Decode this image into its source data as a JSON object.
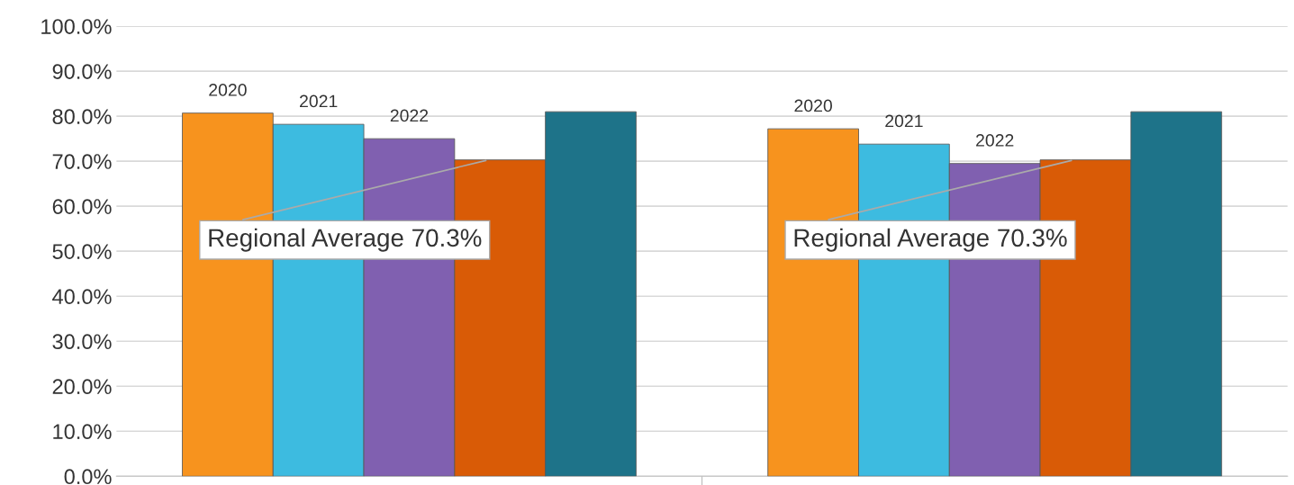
{
  "chart_data": {
    "type": "bar",
    "categories": [
      null,
      null
    ],
    "series": [
      {
        "name": "2020",
        "color": "#f7931e",
        "values": [
          80.7,
          77.2
        ]
      },
      {
        "name": "2021",
        "color": "#3dbbe0",
        "values": [
          78.2,
          73.8
        ]
      },
      {
        "name": "2022",
        "color": "#8060b0",
        "values": [
          75.0,
          69.5
        ]
      },
      {
        "color": "#d95b06",
        "values": [
          70.3,
          70.3
        ]
      },
      {
        "color": "#1e7389",
        "values": [
          81.0,
          81.0
        ]
      }
    ],
    "ylim": [
      0,
      100
    ],
    "yticks": [
      {
        "value": 0,
        "label": "0.0%"
      },
      {
        "value": 10,
        "label": "10.0%"
      },
      {
        "value": 20,
        "label": "20.0%"
      },
      {
        "value": 30,
        "label": "30.0%"
      },
      {
        "value": 40,
        "label": "40.0%"
      },
      {
        "value": 50,
        "label": "50.0%"
      },
      {
        "value": 60,
        "label": "60.0%"
      },
      {
        "value": 70,
        "label": "70.0%"
      },
      {
        "value": 80,
        "label": "80.0%"
      },
      {
        "value": 90,
        "label": "90.0%"
      },
      {
        "value": 100,
        "label": "100.0%"
      }
    ],
    "grid": "y",
    "legend": false,
    "annotations": [
      "Regional Average 70.3%",
      "Regional Average 70.3%"
    ]
  }
}
